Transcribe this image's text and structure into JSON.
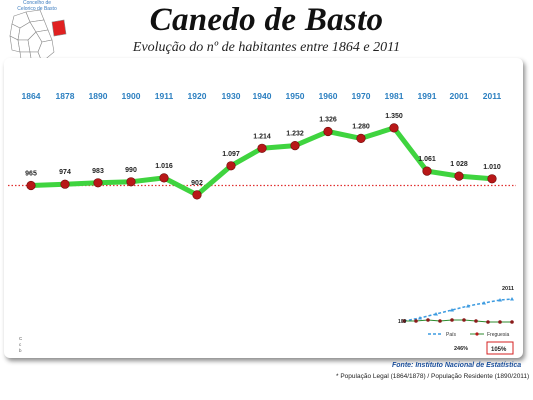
{
  "map": {
    "caption_line1": "Concelho de",
    "caption_line2": "Celorico de Basto",
    "highlight_color": "#e02020"
  },
  "title": "Canedo de Basto",
  "subtitle": "Evolução do nº de habitantes entre 1864 e 2011",
  "chart_data": {
    "type": "line",
    "categories": [
      "1864",
      "1878",
      "1890",
      "1900",
      "1911",
      "1920",
      "1930",
      "1940",
      "1950",
      "1960",
      "1970",
      "1981",
      "1991",
      "2001",
      "2011"
    ],
    "values": [
      965,
      974,
      983,
      990,
      1016,
      902,
      1097,
      1214,
      1232,
      1326,
      1280,
      1350,
      1061,
      1028,
      1010
    ],
    "value_labels": [
      "965",
      "974",
      "983",
      "990",
      "1.016",
      "902",
      "1.097",
      "1.214",
      "1.232",
      "1.326",
      "1.280",
      "1.350",
      "1.061",
      "1 028",
      "1.010"
    ],
    "line_color": "#3fd43f",
    "marker_color": "#b81818",
    "year_color": "#2b7fc0",
    "reference_line": {
      "value": 965,
      "style": "dotted",
      "color": "#e03030"
    }
  },
  "inset": {
    "year_label": "2011",
    "legend_pais": "País",
    "legend_freguesia": "Freguesia",
    "start_label": "100",
    "value_a": "246%",
    "value_b": "105%",
    "pais_color": "#3d9be0",
    "freguesia_color": "#2c8a2c"
  },
  "side_letters": "C\nc\nb",
  "source": "Fonte: Instituto Nacional de Estatística",
  "note": "* População Legal (1864/1878) /  População Residente (1890/2011)"
}
